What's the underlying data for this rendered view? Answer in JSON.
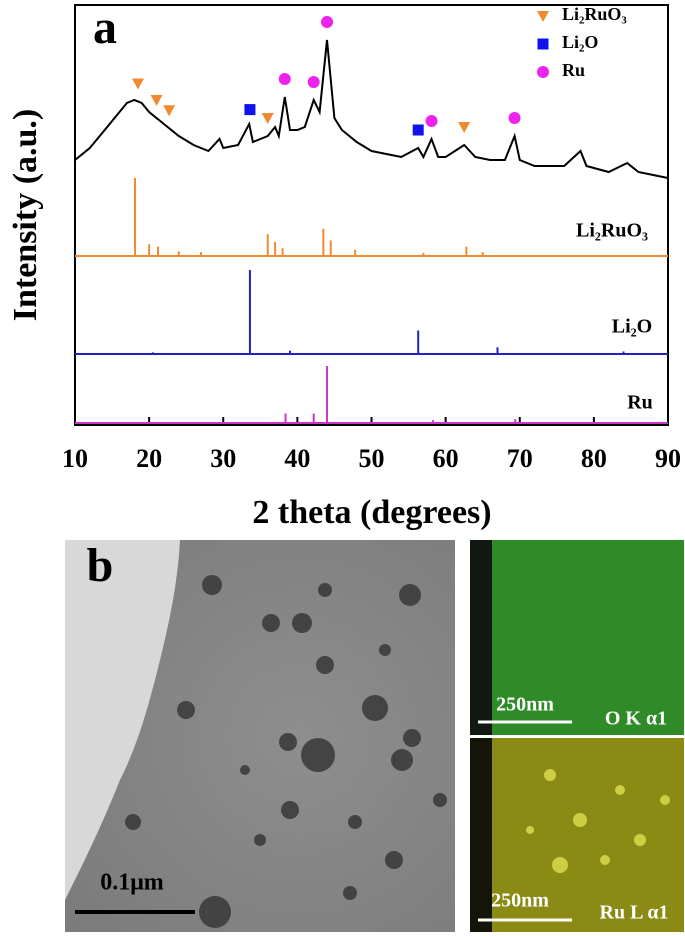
{
  "chart_data": {
    "type": "line",
    "panel_label": "a",
    "xlabel": "2 theta (degrees)",
    "ylabel": "Intensity (a.u.)",
    "xlim": [
      10,
      90
    ],
    "xticks": [
      10,
      20,
      30,
      40,
      50,
      60,
      70,
      80,
      90
    ],
    "series": [
      {
        "color": "#000000",
        "x": [
          10,
          12,
          14,
          16,
          17,
          18,
          19,
          20,
          22,
          24,
          26,
          28,
          29.5,
          30,
          32,
          33.5,
          34,
          36,
          37,
          37.5,
          38.3,
          39,
          40,
          41,
          42.2,
          43,
          44,
          45,
          46,
          48,
          50,
          52,
          54,
          56.3,
          57,
          58.1,
          59,
          60,
          62.5,
          64,
          66,
          68,
          69.3,
          70,
          72,
          74,
          76,
          78.2,
          79,
          82,
          84.5,
          86,
          88,
          90
        ],
        "values": [
          20,
          28,
          40,
          52,
          58,
          60,
          58,
          52,
          44,
          36,
          30,
          26,
          34,
          28,
          30,
          44,
          32,
          36,
          42,
          36,
          62,
          40,
          40,
          42,
          60,
          52,
          100,
          48,
          40,
          32,
          26,
          24,
          22,
          28,
          22,
          34,
          22,
          22,
          30,
          22,
          20,
          20,
          36,
          20,
          16,
          16,
          16,
          26,
          16,
          12,
          18,
          12,
          10,
          8
        ]
      },
      {
        "name": "Li₂RuO₃",
        "color": "#f08a30",
        "x": [
          18.1,
          20,
          21.2,
          24,
          27,
          36,
          37,
          38,
          43.5,
          44.5,
          47.8,
          57,
          62.8,
          65
        ],
        "values": [
          100,
          15,
          12,
          6,
          5,
          28,
          18,
          10,
          35,
          20,
          8,
          4,
          12,
          5
        ]
      },
      {
        "name": "Li₂O",
        "color": "#2222bb",
        "x": [
          20.5,
          33.6,
          39,
          56.3,
          67,
          84
        ],
        "values": [
          2,
          100,
          4,
          28,
          8,
          3
        ]
      },
      {
        "name": "Ru",
        "color": "#cc33cc",
        "x": [
          38.4,
          42.2,
          44,
          58.3,
          69.4
        ],
        "values": [
          10,
          10,
          60,
          3,
          4
        ]
      }
    ],
    "markers": [
      {
        "name": "Li₂RuO₃",
        "shape": "triangle",
        "color": "#f08a30",
        "x": [
          18.5,
          21,
          22.7,
          36,
          62.5
        ]
      },
      {
        "name": "Li₂O",
        "shape": "square",
        "color": "#1111ee",
        "x": [
          33.6,
          56.3
        ]
      },
      {
        "name": "Ru",
        "shape": "circle",
        "color": "#ee22ee",
        "x": [
          38.3,
          42.2,
          44,
          58.1,
          69.3
        ]
      }
    ]
  },
  "panel_b": {
    "label": "b",
    "tem_scale": "0.1μm",
    "maps": [
      {
        "scale": "250nm",
        "element": "O K α1"
      },
      {
        "scale": "250nm",
        "element": "Ru L α1"
      }
    ]
  }
}
